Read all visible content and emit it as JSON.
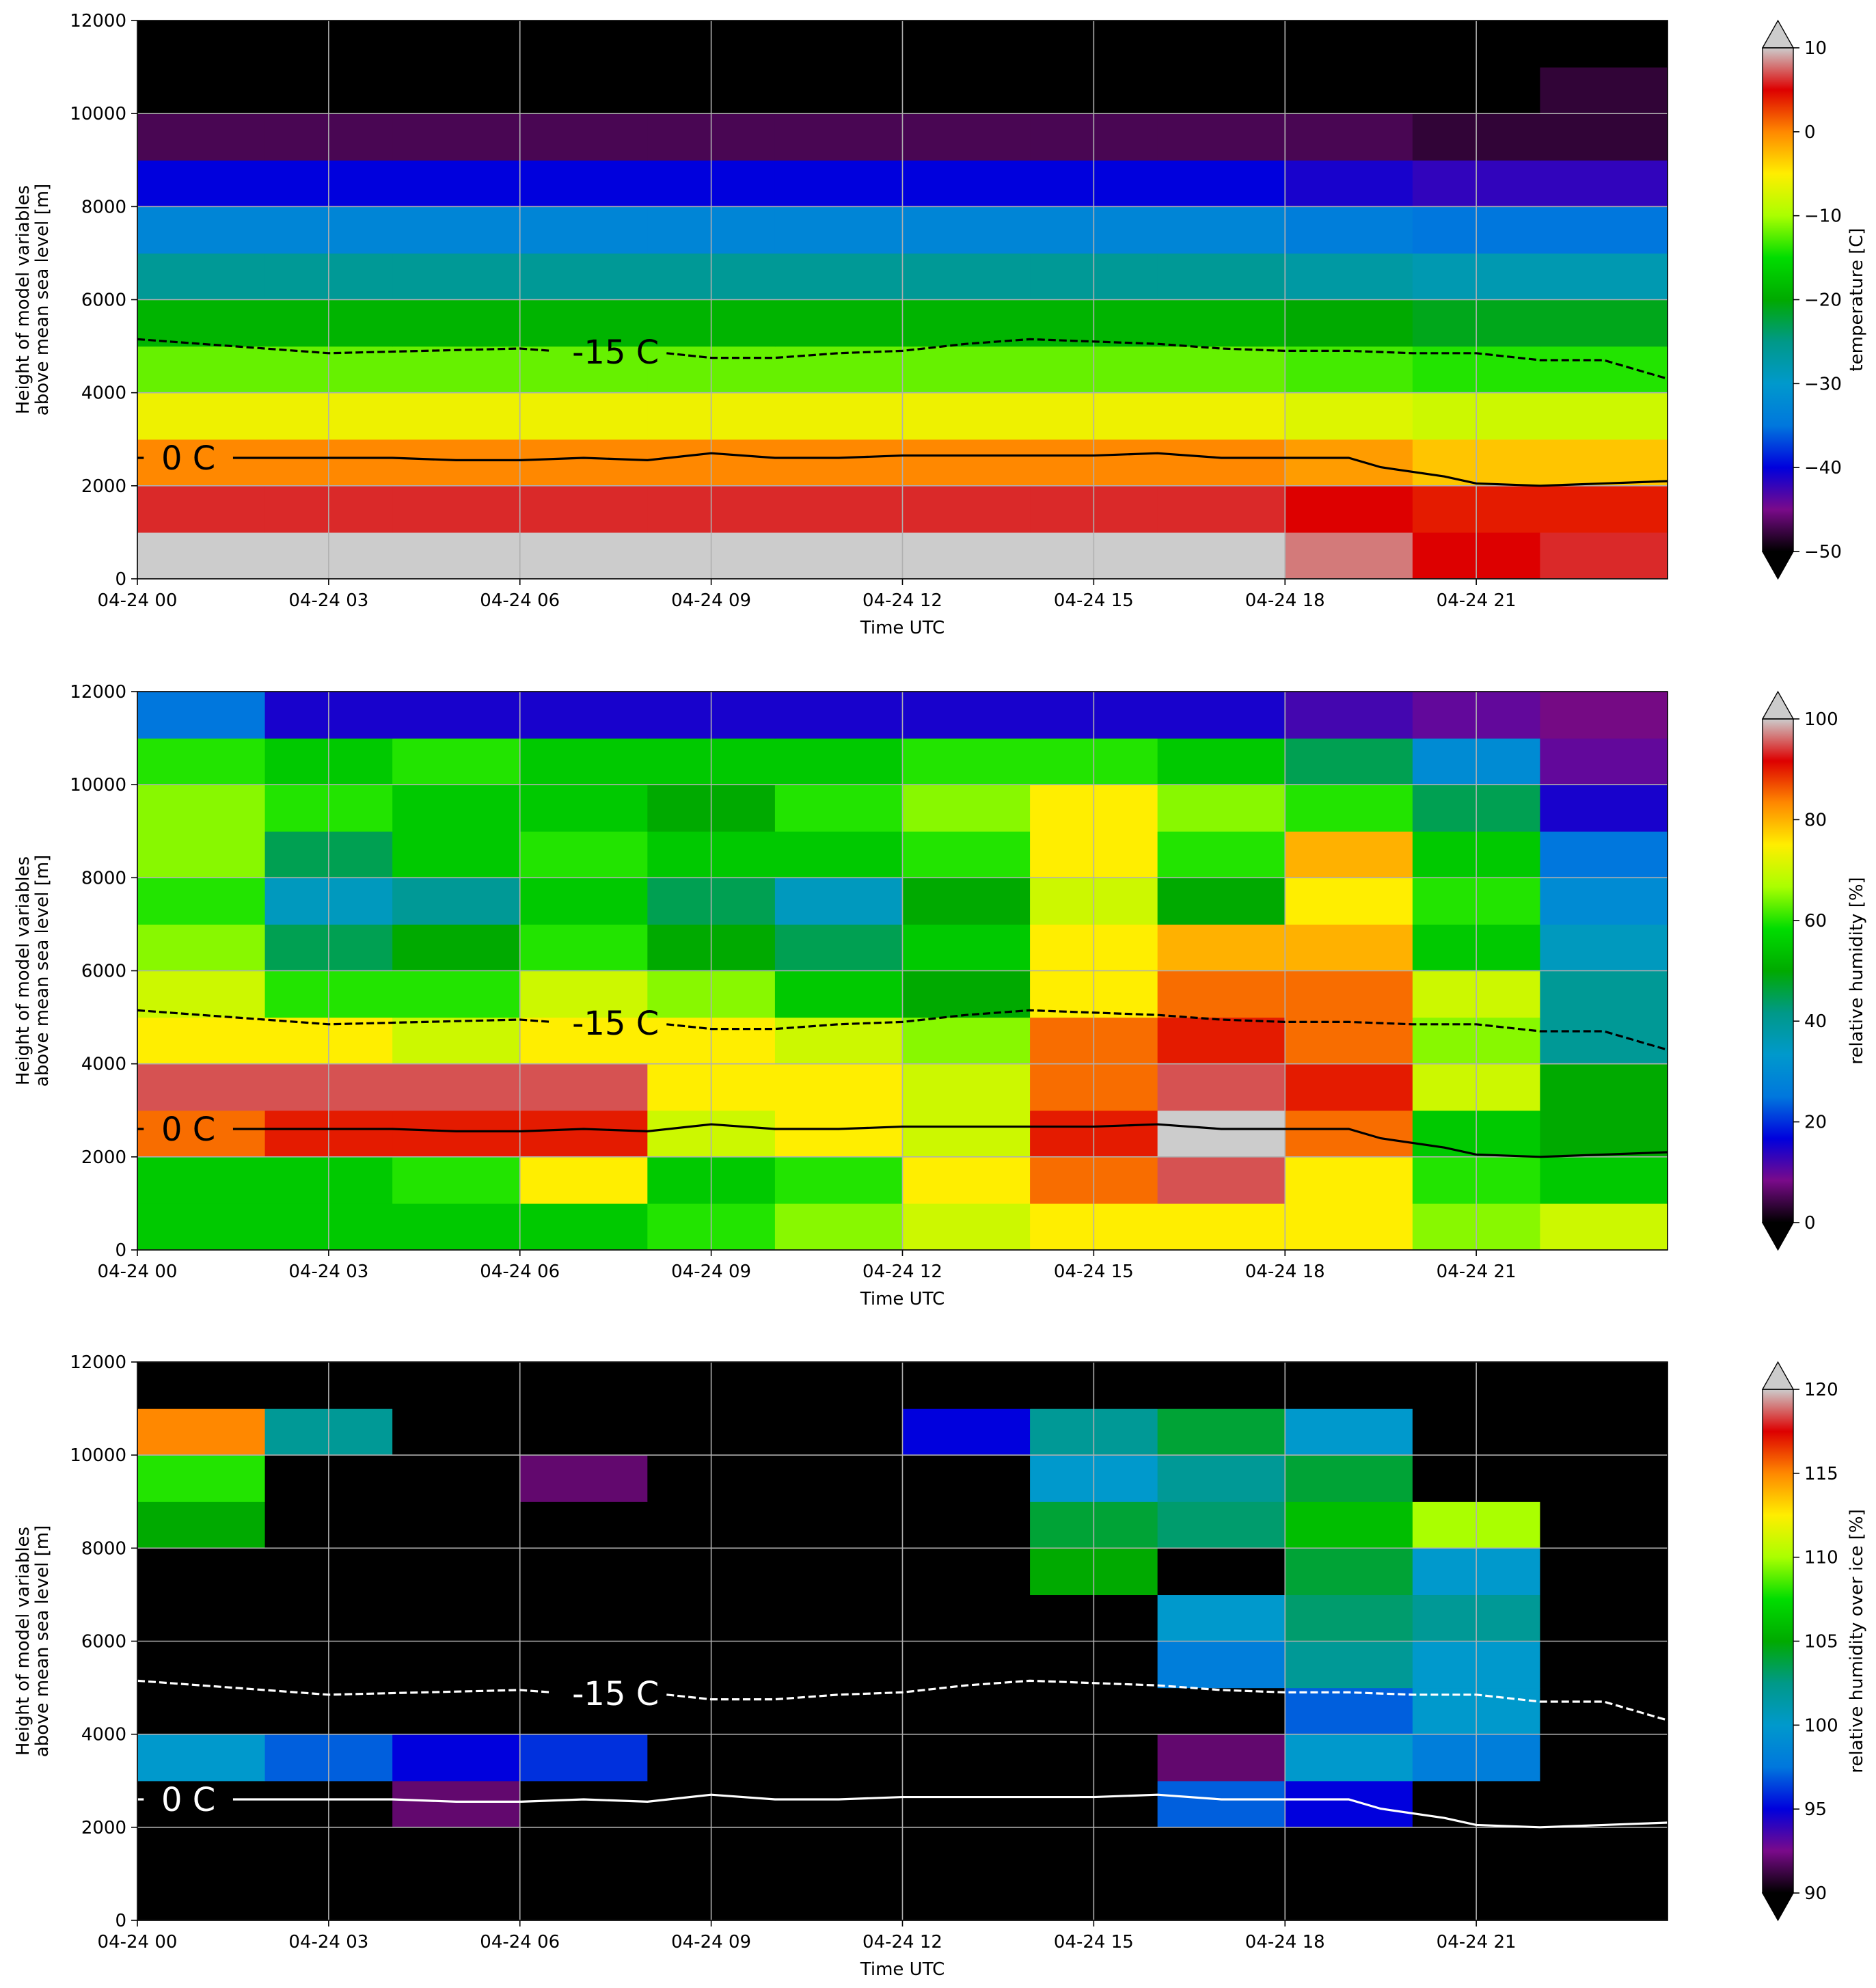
{
  "chart_data": [
    {
      "type": "heatmap",
      "xlabel": "Time UTC",
      "ylabel": [
        "Height of model variables",
        "above mean sea level [m]"
      ],
      "xlim": [
        0,
        24
      ],
      "ylim": [
        0,
        12000
      ],
      "xticks": [
        {
          "value": 0,
          "label": "04-24 00"
        },
        {
          "value": 3,
          "label": "04-24 03"
        },
        {
          "value": 6,
          "label": "04-24 06"
        },
        {
          "value": 9,
          "label": "04-24 09"
        },
        {
          "value": 12,
          "label": "04-24 12"
        },
        {
          "value": 15,
          "label": "04-24 15"
        },
        {
          "value": 18,
          "label": "04-24 18"
        },
        {
          "value": 21,
          "label": "04-24 21"
        }
      ],
      "yticks": [
        0,
        2000,
        4000,
        6000,
        8000,
        10000,
        12000
      ],
      "grid": true,
      "x": [
        1,
        3,
        5,
        7,
        9,
        11,
        13,
        15,
        17,
        19,
        21,
        23
      ],
      "y": [
        500,
        1500,
        2500,
        3500,
        4500,
        5500,
        6500,
        7500,
        8500,
        9500,
        10500,
        11500
      ],
      "z": [
        [
          12,
          12,
          12,
          12,
          12,
          12,
          12,
          12,
          11,
          8,
          5,
          6
        ],
        [
          6,
          6,
          6,
          6,
          6,
          6,
          6,
          6,
          6,
          5,
          4,
          4
        ],
        [
          0,
          0,
          0,
          0,
          0,
          0,
          0,
          0,
          0,
          -1,
          -3,
          -3
        ],
        [
          -6,
          -6,
          -6,
          -6,
          -6,
          -6,
          -6,
          -6,
          -6,
          -7,
          -8,
          -8
        ],
        [
          -12,
          -12,
          -12,
          -12,
          -12,
          -12,
          -12,
          -12,
          -12,
          -13,
          -14,
          -14
        ],
        [
          -19,
          -19,
          -19,
          -19,
          -19,
          -19,
          -19,
          -19,
          -19,
          -20,
          -21,
          -21
        ],
        [
          -26,
          -26,
          -26,
          -26,
          -26,
          -26,
          -26,
          -26,
          -26,
          -27,
          -28,
          -28
        ],
        [
          -33,
          -33,
          -33,
          -33,
          -33,
          -33,
          -33,
          -33,
          -33,
          -34,
          -35,
          -35
        ],
        [
          -40,
          -40,
          -40,
          -40,
          -40,
          -40,
          -40,
          -40,
          -40,
          -41,
          -42,
          -42
        ],
        [
          -47,
          -47,
          -47,
          -47,
          -47,
          -47,
          -47,
          -47,
          -47,
          -47,
          -48,
          -48
        ],
        [
          -55,
          -55,
          -55,
          -55,
          -55,
          -55,
          -55,
          -55,
          -55,
          -55,
          -55,
          -48
        ],
        [
          -58,
          -58,
          -58,
          -58,
          -58,
          -58,
          -58,
          -58,
          -58,
          -58,
          -58,
          -58
        ]
      ],
      "colorbar": {
        "label": "temperature [C]",
        "clim": [
          -50,
          10
        ],
        "extend": "both",
        "ticks": [
          {
            "value": -50,
            "label": "−50"
          },
          {
            "value": -40,
            "label": "−40"
          },
          {
            "value": -30,
            "label": "−30"
          },
          {
            "value": -20,
            "label": "−20"
          },
          {
            "value": -10,
            "label": "−10"
          },
          0,
          10
        ],
        "colormap": [
          "#000000",
          "#7a0a8a",
          "#0000dd",
          "#0077dd",
          "#0099cc",
          "#009988",
          "#00aa00",
          "#00dd00",
          "#aaff00",
          "#ffee00",
          "#ff8800",
          "#dd0000",
          "#cccccc"
        ]
      },
      "contours": [
        {
          "label": "-15 C",
          "style": "dashed",
          "color": "#000000",
          "x": [
            0,
            3,
            6,
            6.5,
            7.5,
            8.3,
            9,
            10,
            11,
            12,
            13,
            14,
            15,
            16,
            17,
            18,
            19,
            20,
            21,
            22,
            23,
            24
          ],
          "values": [
            5150,
            4850,
            4950,
            4900,
            null,
            4850,
            4750,
            4750,
            4850,
            4900,
            5050,
            5150,
            5100,
            5050,
            4950,
            4900,
            4900,
            4850,
            4850,
            4700,
            4700,
            4300
          ]
        },
        {
          "label": "0 C",
          "style": "solid",
          "color": "#000000",
          "x": [
            0,
            0.1,
            0.8,
            1.5,
            3,
            4,
            5,
            6,
            7,
            8,
            9,
            10,
            11,
            12,
            13,
            14,
            15,
            16,
            17,
            18,
            19,
            19.5,
            20.5,
            21,
            22,
            23,
            24
          ],
          "values": [
            2600,
            2600,
            null,
            2600,
            2600,
            2600,
            2550,
            2550,
            2600,
            2550,
            2700,
            2600,
            2600,
            2650,
            2650,
            2650,
            2650,
            2700,
            2600,
            2600,
            2600,
            2400,
            2200,
            2050,
            2000,
            2050,
            2100
          ]
        }
      ]
    },
    {
      "type": "heatmap",
      "xlabel": "Time UTC",
      "ylabel": [
        "Height of model variables",
        "above mean sea level [m]"
      ],
      "xlim": [
        0,
        24
      ],
      "ylim": [
        0,
        12000
      ],
      "xticks": [
        {
          "value": 0,
          "label": "04-24 00"
        },
        {
          "value": 3,
          "label": "04-24 03"
        },
        {
          "value": 6,
          "label": "04-24 06"
        },
        {
          "value": 9,
          "label": "04-24 09"
        },
        {
          "value": 12,
          "label": "04-24 12"
        },
        {
          "value": 15,
          "label": "04-24 15"
        },
        {
          "value": 18,
          "label": "04-24 18"
        },
        {
          "value": 21,
          "label": "04-24 21"
        }
      ],
      "yticks": [
        0,
        2000,
        4000,
        6000,
        8000,
        10000,
        12000
      ],
      "grid": true,
      "x": [
        1,
        3,
        5,
        7,
        9,
        11,
        13,
        15,
        17,
        19,
        21,
        23
      ],
      "y": [
        500,
        1500,
        2500,
        3500,
        4500,
        5500,
        6500,
        7500,
        8500,
        9500,
        10500,
        11500
      ],
      "z": [
        [
          55,
          55,
          55,
          55,
          60,
          65,
          70,
          75,
          75,
          75,
          65,
          70
        ],
        [
          55,
          55,
          60,
          75,
          55,
          60,
          75,
          85,
          95,
          75,
          60,
          55
        ],
        [
          85,
          90,
          90,
          90,
          70,
          75,
          70,
          90,
          100,
          85,
          55,
          50
        ],
        [
          95,
          95,
          95,
          95,
          75,
          75,
          70,
          85,
          95,
          90,
          70,
          50
        ],
        [
          75,
          75,
          70,
          75,
          75,
          70,
          65,
          85,
          90,
          85,
          65,
          40
        ],
        [
          70,
          60,
          60,
          70,
          65,
          55,
          50,
          75,
          85,
          85,
          70,
          40
        ],
        [
          65,
          45,
          50,
          60,
          50,
          45,
          55,
          75,
          80,
          80,
          55,
          35
        ],
        [
          60,
          35,
          40,
          55,
          45,
          35,
          50,
          70,
          50,
          75,
          60,
          30
        ],
        [
          65,
          45,
          55,
          60,
          55,
          55,
          60,
          75,
          60,
          80,
          55,
          25
        ],
        [
          65,
          60,
          55,
          55,
          50,
          60,
          65,
          75,
          65,
          60,
          45,
          15
        ],
        [
          60,
          55,
          60,
          55,
          55,
          55,
          60,
          60,
          55,
          45,
          30,
          10
        ],
        [
          25,
          15,
          15,
          15,
          15,
          15,
          15,
          15,
          15,
          12,
          10,
          8
        ]
      ],
      "colorbar": {
        "label": "relative humidity [%]",
        "clim": [
          0,
          100
        ],
        "extend": "both",
        "ticks": [
          0,
          20,
          40,
          60,
          80,
          100
        ],
        "colormap": [
          "#000000",
          "#7a0a8a",
          "#0000dd",
          "#0077dd",
          "#0099cc",
          "#009988",
          "#00aa00",
          "#00dd00",
          "#aaff00",
          "#ffee00",
          "#ff8800",
          "#dd0000",
          "#cccccc"
        ]
      },
      "contours": [
        {
          "label": "-15 C",
          "style": "dashed",
          "color": "#000000",
          "x": [
            0,
            3,
            6,
            6.5,
            7.5,
            8.3,
            9,
            10,
            11,
            12,
            13,
            14,
            15,
            16,
            17,
            18,
            19,
            20,
            21,
            22,
            23,
            24
          ],
          "values": [
            5150,
            4850,
            4950,
            4900,
            null,
            4850,
            4750,
            4750,
            4850,
            4900,
            5050,
            5150,
            5100,
            5050,
            4950,
            4900,
            4900,
            4850,
            4850,
            4700,
            4700,
            4300
          ]
        },
        {
          "label": "0 C",
          "style": "solid",
          "color": "#000000",
          "x": [
            0,
            0.1,
            0.8,
            1.5,
            3,
            4,
            5,
            6,
            7,
            8,
            9,
            10,
            11,
            12,
            13,
            14,
            15,
            16,
            17,
            18,
            19,
            19.5,
            20.5,
            21,
            22,
            23,
            24
          ],
          "values": [
            2600,
            2600,
            null,
            2600,
            2600,
            2600,
            2550,
            2550,
            2600,
            2550,
            2700,
            2600,
            2600,
            2650,
            2650,
            2650,
            2650,
            2700,
            2600,
            2600,
            2600,
            2400,
            2200,
            2050,
            2000,
            2050,
            2100
          ]
        }
      ]
    },
    {
      "type": "heatmap",
      "xlabel": "Time UTC",
      "ylabel": [
        "Height of model variables",
        "above mean sea level [m]"
      ],
      "xlim": [
        0,
        24
      ],
      "ylim": [
        0,
        12000
      ],
      "xticks": [
        {
          "value": 0,
          "label": "04-24 00"
        },
        {
          "value": 3,
          "label": "04-24 03"
        },
        {
          "value": 6,
          "label": "04-24 06"
        },
        {
          "value": 9,
          "label": "04-24 09"
        },
        {
          "value": 12,
          "label": "04-24 12"
        },
        {
          "value": 15,
          "label": "04-24 15"
        },
        {
          "value": 18,
          "label": "04-24 18"
        },
        {
          "value": 21,
          "label": "04-24 21"
        }
      ],
      "yticks": [
        0,
        2000,
        4000,
        6000,
        8000,
        10000,
        12000
      ],
      "grid": true,
      "x": [
        1,
        3,
        5,
        7,
        9,
        11,
        13,
        15,
        17,
        19,
        21,
        23
      ],
      "y": [
        500,
        1500,
        2500,
        3500,
        4500,
        5500,
        6500,
        7500,
        8500,
        9500,
        10500,
        11500
      ],
      "z": [
        [
          80,
          80,
          80,
          80,
          80,
          80,
          80,
          80,
          80,
          80,
          80,
          80
        ],
        [
          80,
          80,
          80,
          80,
          80,
          80,
          80,
          80,
          80,
          80,
          80,
          80
        ],
        [
          80,
          80,
          92,
          80,
          80,
          80,
          80,
          80,
          97,
          95,
          80,
          80
        ],
        [
          100,
          97,
          95,
          96,
          80,
          80,
          80,
          80,
          92,
          100,
          98,
          80
        ],
        [
          80,
          80,
          80,
          80,
          80,
          80,
          80,
          80,
          80,
          97,
          100,
          80
        ],
        [
          80,
          80,
          80,
          80,
          80,
          80,
          80,
          80,
          98,
          102,
          100,
          80
        ],
        [
          80,
          80,
          80,
          80,
          80,
          80,
          80,
          80,
          100,
          103,
          102,
          80
        ],
        [
          80,
          80,
          80,
          80,
          80,
          80,
          80,
          105,
          80,
          104,
          100,
          80
        ],
        [
          105,
          80,
          80,
          80,
          80,
          80,
          80,
          104,
          103,
          106,
          110,
          80
        ],
        [
          108,
          80,
          80,
          92,
          80,
          80,
          80,
          100,
          102,
          104,
          80,
          80
        ],
        [
          115,
          102,
          80,
          80,
          80,
          80,
          95,
          102,
          104,
          100,
          80,
          80
        ],
        [
          80,
          80,
          80,
          80,
          80,
          80,
          80,
          80,
          80,
          80,
          80,
          80
        ]
      ],
      "colorbar": {
        "label": "relative humidity over ice [%]",
        "clim": [
          90,
          120
        ],
        "extend": "both",
        "ticks": [
          90,
          95,
          100,
          105,
          110,
          115,
          120
        ],
        "colormap": [
          "#000000",
          "#7a0a8a",
          "#0000dd",
          "#0077dd",
          "#0099cc",
          "#009988",
          "#00aa00",
          "#00dd00",
          "#aaff00",
          "#ffee00",
          "#ff8800",
          "#dd0000",
          "#cccccc"
        ]
      },
      "contours": [
        {
          "label": "-15 C",
          "style": "dashed",
          "color": "#ffffff",
          "x": [
            0,
            3,
            6,
            6.5,
            7.5,
            8.3,
            9,
            10,
            11,
            12,
            13,
            14,
            15,
            16,
            17,
            18,
            19,
            20,
            21,
            22,
            23,
            24
          ],
          "values": [
            5150,
            4850,
            4950,
            4900,
            null,
            4850,
            4750,
            4750,
            4850,
            4900,
            5050,
            5150,
            5100,
            5050,
            4950,
            4900,
            4900,
            4850,
            4850,
            4700,
            4700,
            4300
          ]
        },
        {
          "label": "0 C",
          "style": "solid",
          "color": "#ffffff",
          "x": [
            0,
            0.1,
            0.8,
            1.5,
            3,
            4,
            5,
            6,
            7,
            8,
            9,
            10,
            11,
            12,
            13,
            14,
            15,
            16,
            17,
            18,
            19,
            19.5,
            20.5,
            21,
            22,
            23,
            24
          ],
          "values": [
            2600,
            2600,
            null,
            2600,
            2600,
            2600,
            2550,
            2550,
            2600,
            2550,
            2700,
            2600,
            2600,
            2650,
            2650,
            2650,
            2650,
            2700,
            2600,
            2600,
            2600,
            2400,
            2200,
            2050,
            2000,
            2050,
            2100
          ]
        }
      ]
    }
  ]
}
